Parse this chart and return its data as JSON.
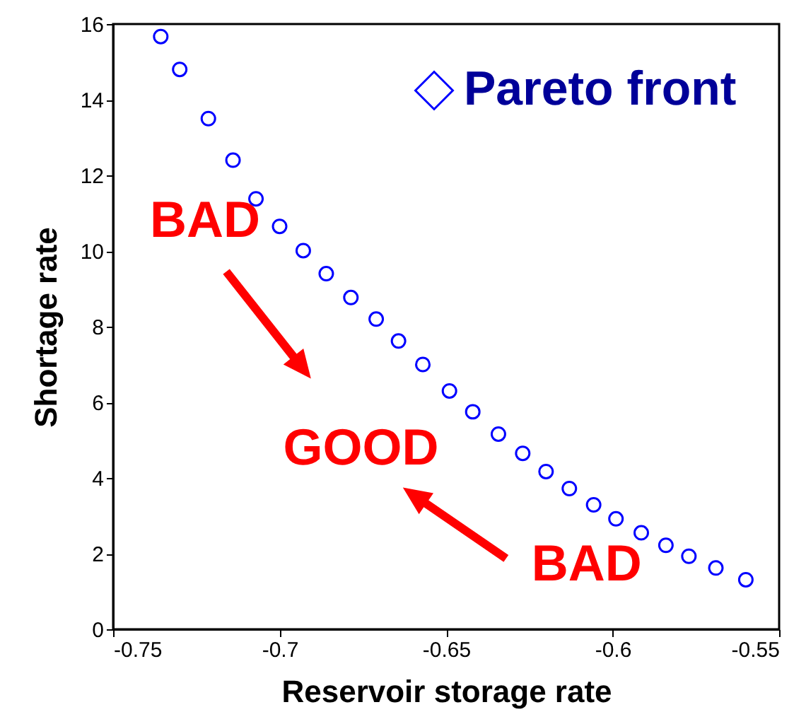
{
  "chart_data": {
    "type": "scatter",
    "xlabel": "Reservoir storage rate",
    "ylabel": "Shortage rate",
    "x": [
      -0.7357,
      -0.73,
      -0.7214,
      -0.714,
      -0.7071,
      -0.7,
      -0.6929,
      -0.686,
      -0.6786,
      -0.671,
      -0.6643,
      -0.657,
      -0.649,
      -0.642,
      -0.6343,
      -0.627,
      -0.62,
      -0.613,
      -0.6057,
      -0.599,
      -0.5914,
      -0.584,
      -0.5771,
      -0.569,
      -0.56
    ],
    "series": [
      {
        "name": "Pareto front",
        "color": "#0000ff",
        "values": [
          15.67,
          14.8,
          13.5,
          12.4,
          11.38,
          10.65,
          10.01,
          9.4,
          8.77,
          8.2,
          7.62,
          7.0,
          6.3,
          5.75,
          5.16,
          4.65,
          4.17,
          3.72,
          3.29,
          2.92,
          2.55,
          2.22,
          1.93,
          1.62,
          1.31
        ]
      }
    ],
    "xlim": [
      -0.75,
      -0.55
    ],
    "xticks": [
      -0.75,
      -0.7,
      -0.65,
      -0.6,
      -0.55
    ],
    "ylim": [
      0,
      16
    ],
    "yticks": [
      0,
      2,
      4,
      6,
      8,
      10,
      12,
      14,
      16
    ],
    "marker": "circle",
    "legend": "top right",
    "annotations": [
      "BAD",
      "GOOD",
      "BAD"
    ]
  }
}
